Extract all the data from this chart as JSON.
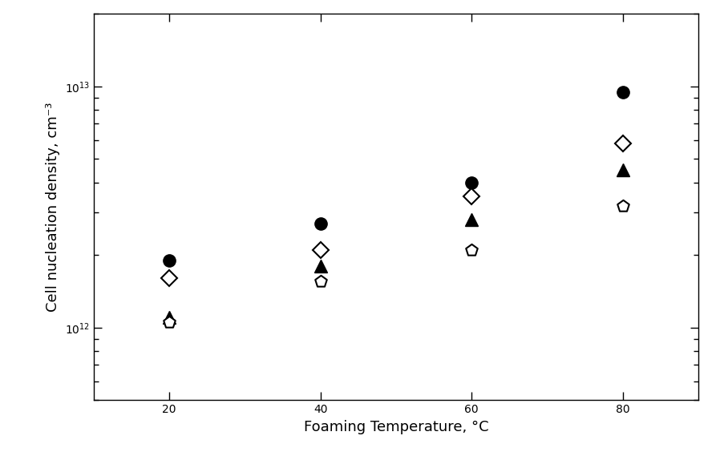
{
  "x": [
    20,
    40,
    60,
    80
  ],
  "series": {
    "filled_circle": [
      1900000000000.0,
      2700000000000.0,
      4000000000000.0,
      9500000000000.0
    ],
    "open_diamond": [
      1600000000000.0,
      2100000000000.0,
      3500000000000.0,
      5800000000000.0
    ],
    "filled_triangle": [
      1100000000000.0,
      1800000000000.0,
      2800000000000.0,
      4500000000000.0
    ],
    "open_pentagon": [
      1050000000000.0,
      1550000000000.0,
      2100000000000.0,
      3200000000000.0
    ]
  },
  "xlabel": "Foaming Temperature, °C",
  "ylabel": "Cell nucleation density, cm⁻³",
  "xlim": [
    10,
    90
  ],
  "ylim": [
    500000000000.0,
    20000000000000.0
  ],
  "xticks": [
    20,
    40,
    60,
    80
  ],
  "background_color": "#ffffff",
  "marker_color": "#000000",
  "marker_size": 11,
  "font_size": 13
}
